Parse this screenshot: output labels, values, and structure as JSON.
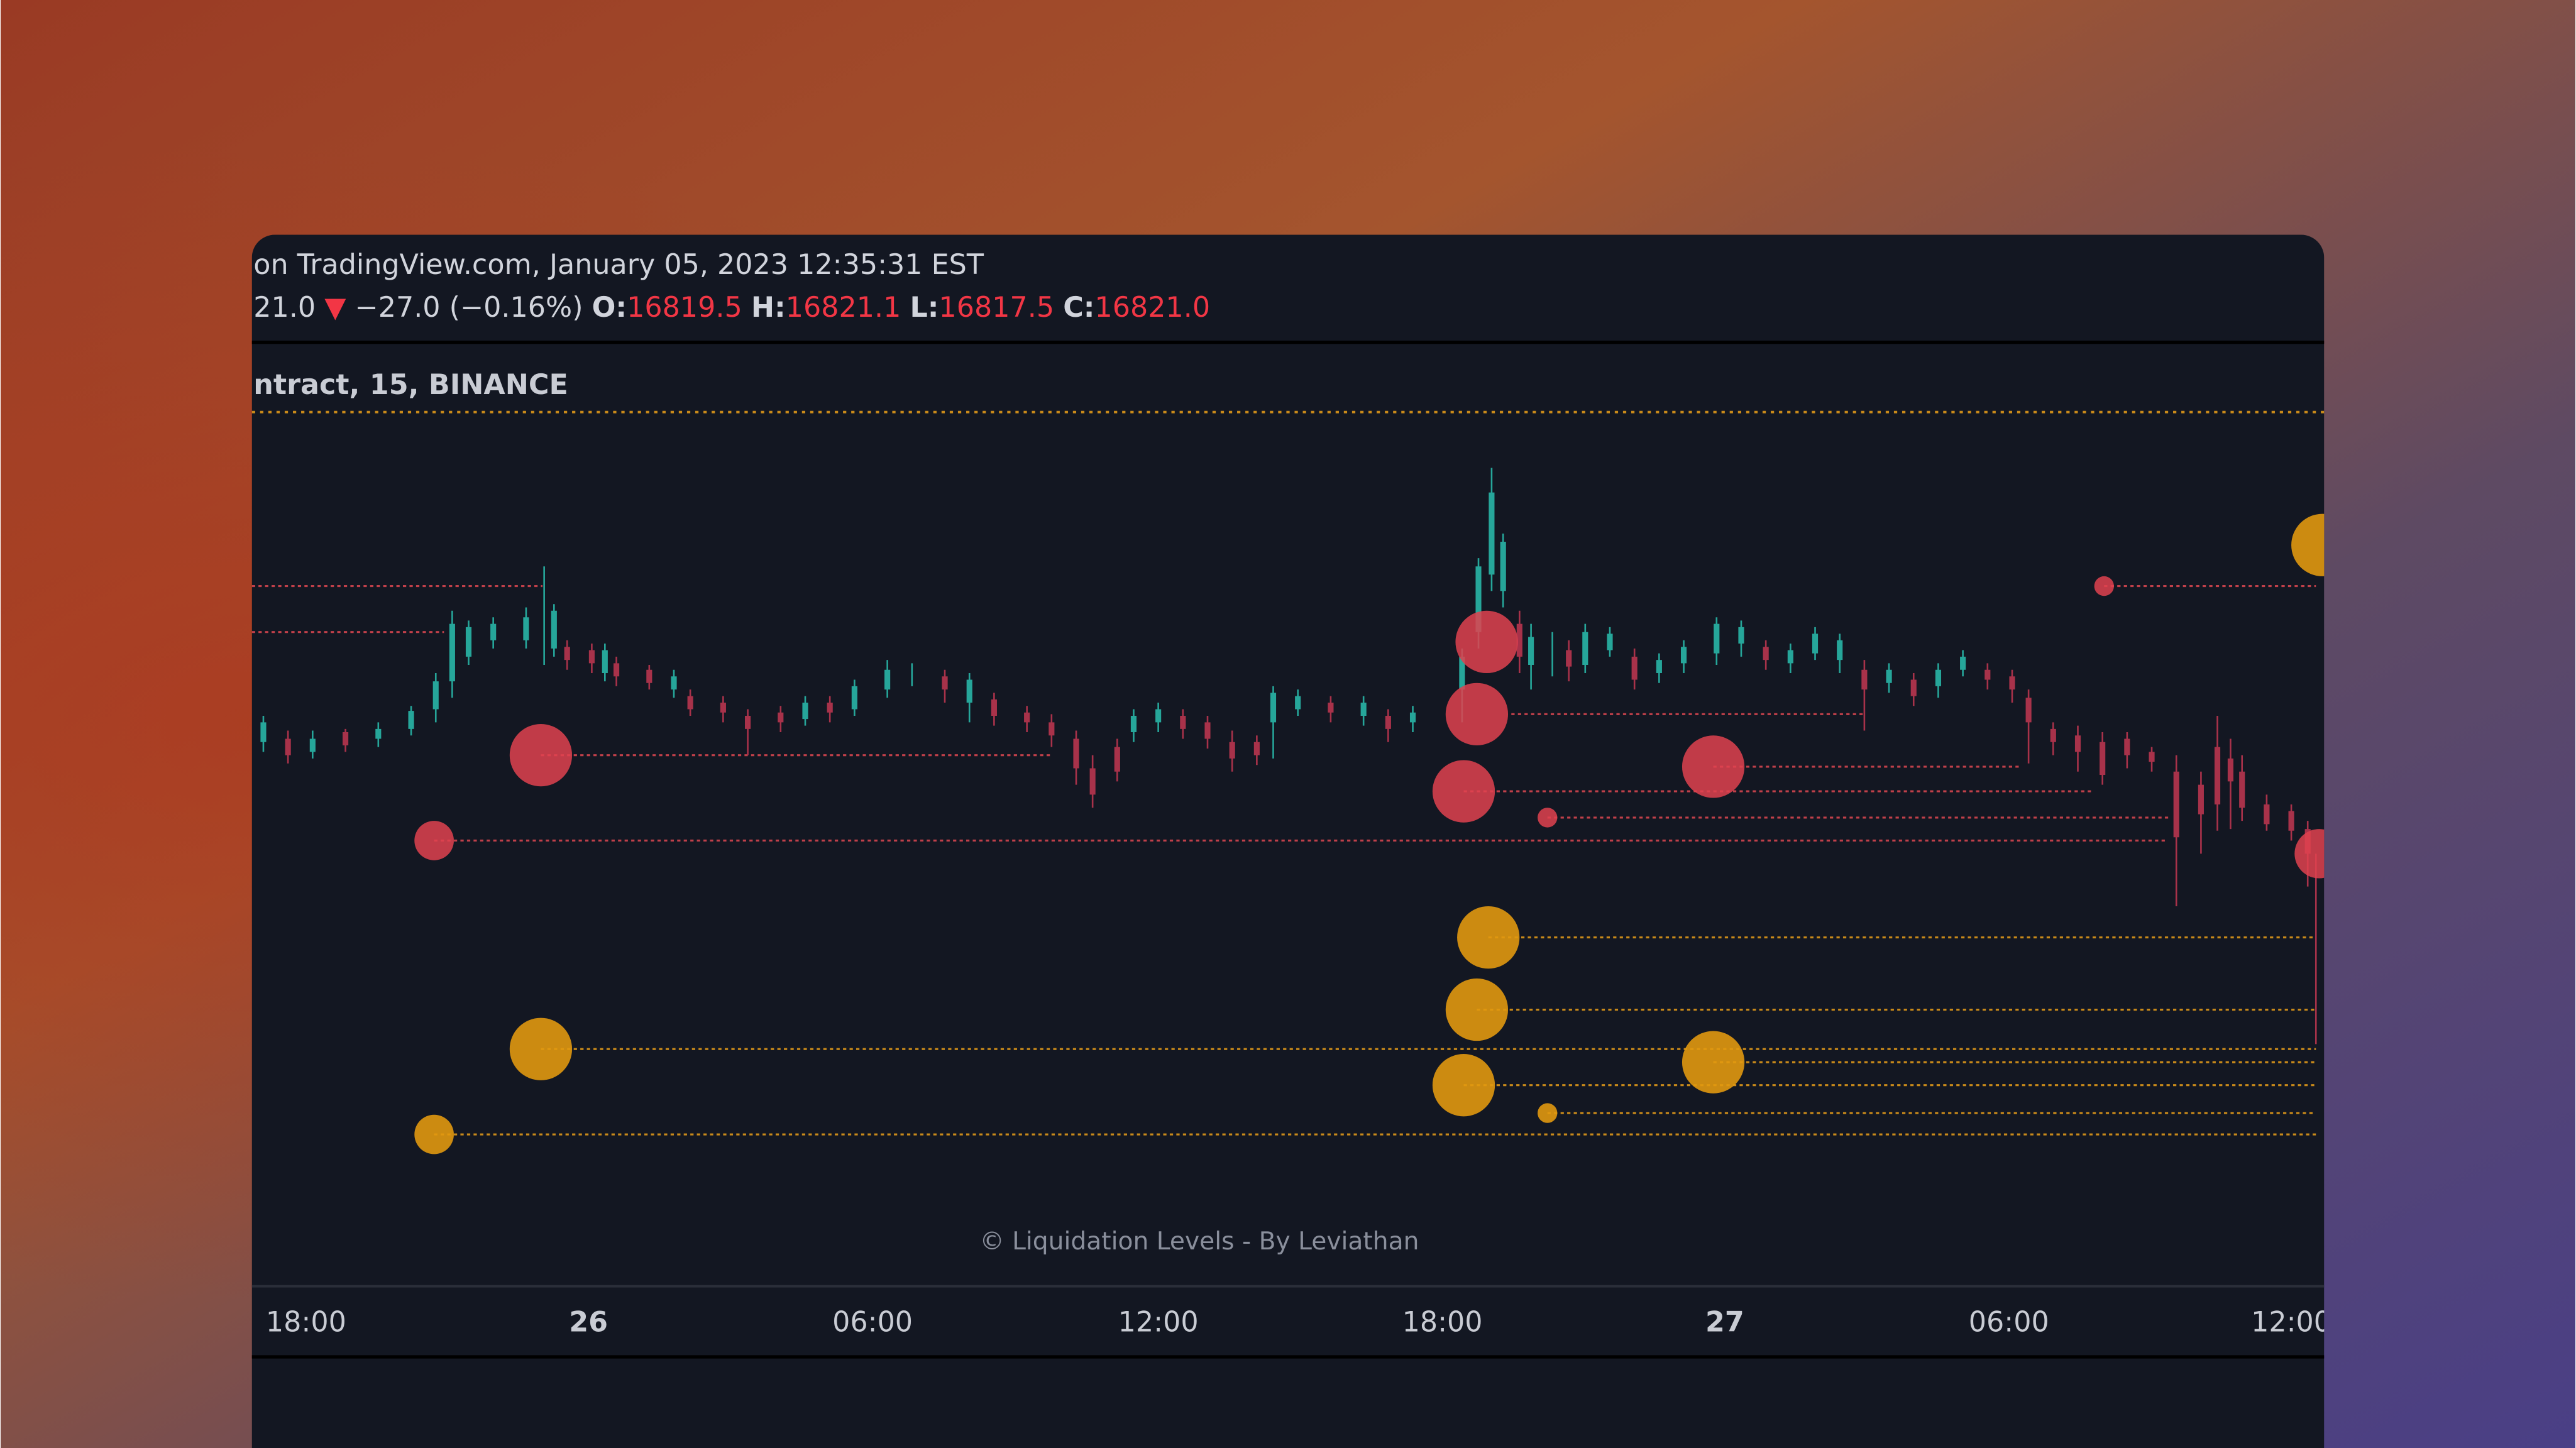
{
  "header": {
    "source": "on TradingView.com, January 05, 2023 12:35:31 EST",
    "last": "21.0",
    "change_arrow": "▼",
    "change": "−27.0 (−0.16%)",
    "ohlc": [
      {
        "label": "O:",
        "value": "16819.5"
      },
      {
        "label": "H:",
        "value": "16821.1"
      },
      {
        "label": "L:",
        "value": "16817.5"
      },
      {
        "label": "C:",
        "value": "16821.0"
      }
    ]
  },
  "symbol": "ntract, 15, BINANCE",
  "watermark": "© Liquidation Levels - By Leviathan",
  "time_axis": [
    "18:00",
    "26",
    "06:00",
    "12:00",
    "18:00",
    "27",
    "06:00",
    "12:00"
  ]
}
